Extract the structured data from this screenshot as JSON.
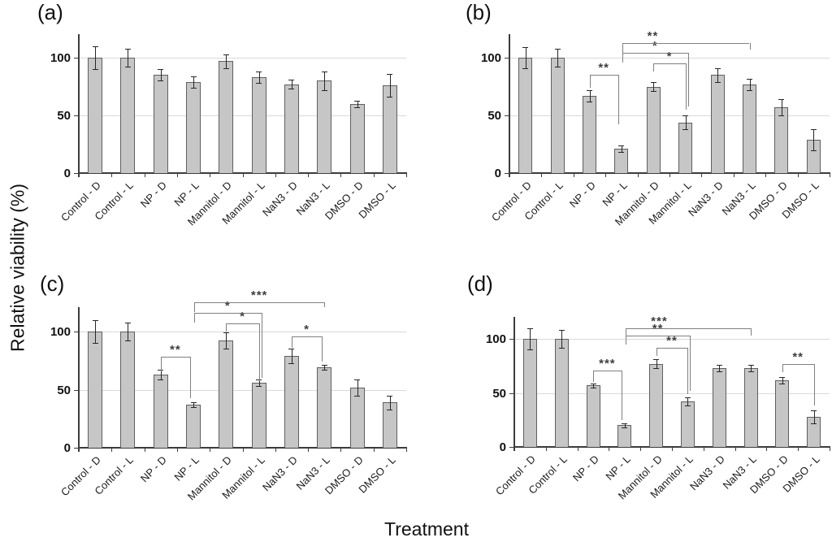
{
  "figure_title": "",
  "axes": {
    "ylabel": "Relative viability (%)",
    "xlabel": "Treatment"
  },
  "colors": {
    "bar_fill": "#c6c6c6",
    "bar_border": "#5f5f5f",
    "grid": "#d9d9d9",
    "axis": "#3c3c3c",
    "error_bar": "#262626",
    "bracket": "#808080",
    "sig_text": "#3f3f3f",
    "text": "#111111"
  },
  "chart_data": {
    "type": "bar",
    "title": "",
    "xlabel": "Treatment",
    "ylabel": "Relative viability (%)",
    "categories": [
      "Control - D",
      "Control - L",
      "NP - D",
      "NP - L",
      "Mannitol - D",
      "Mannitol - L",
      "NaN3 - D",
      "NaN3 - L",
      "DMSO - D",
      "DMSO - L"
    ],
    "yticks": [
      0,
      50,
      100
    ],
    "ylim": [
      0,
      120
    ],
    "grid": "horizontal",
    "legend": "none",
    "panels": [
      {
        "label": "(a)",
        "values": [
          100,
          100,
          85,
          79,
          97,
          83,
          77,
          80,
          60,
          76
        ],
        "errors": [
          10,
          8,
          5,
          5,
          6,
          5,
          4,
          8,
          3,
          10
        ],
        "brackets": []
      },
      {
        "label": "(b)",
        "values": [
          100,
          100,
          67,
          21,
          75,
          44,
          85,
          77,
          57,
          29
        ],
        "errors": [
          9,
          8,
          5,
          3,
          4,
          6,
          6,
          5,
          7,
          9
        ],
        "brackets": [
          {
            "a": 2,
            "b": 3,
            "sig": "**",
            "y": 85,
            "el": 74,
            "er": 42,
            "xb": -4
          },
          {
            "a": 4,
            "b": 5,
            "sig": "*",
            "y": 95,
            "el": 88,
            "er": 55
          },
          {
            "a": 3,
            "b": 5,
            "sig": "*",
            "y": 104,
            "el": 96,
            "er": 58,
            "xa": 1,
            "xb": 3
          },
          {
            "a": 3,
            "b": 7,
            "sig": "**",
            "y": 113,
            "el": 104,
            "er": 107,
            "xa": 1,
            "lx": 0.24
          }
        ]
      },
      {
        "label": "(c)",
        "values": [
          100,
          100,
          63,
          37,
          92,
          56,
          79,
          69,
          52,
          39
        ],
        "errors": [
          10,
          8,
          4,
          2,
          7,
          3,
          6,
          2,
          7,
          6
        ],
        "brackets": [
          {
            "a": 2,
            "b": 3,
            "sig": "**",
            "y": 78,
            "el": 66,
            "er": 43,
            "xb": -4
          },
          {
            "a": 4,
            "b": 5,
            "sig": "*",
            "y": 107,
            "el": 100,
            "er": 57
          },
          {
            "a": 3,
            "b": 5,
            "sig": "*",
            "y": 116,
            "el": 108,
            "er": 60,
            "xa": 1,
            "xb": 3
          },
          {
            "a": 3,
            "b": 7,
            "sig": "***",
            "y": 125,
            "el": 117,
            "er": 121,
            "xa": 1
          },
          {
            "a": 6,
            "b": 7,
            "sig": "*",
            "y": 96,
            "el": 86,
            "er": 74,
            "xb": -3
          }
        ]
      },
      {
        "label": "(d)",
        "values": [
          100,
          100,
          57,
          20,
          77,
          42,
          73,
          73,
          62,
          28
        ],
        "errors": [
          10,
          8,
          2,
          2,
          4,
          4,
          3,
          3,
          3,
          6
        ],
        "brackets": [
          {
            "a": 2,
            "b": 3,
            "sig": "***",
            "y": 71,
            "el": 60,
            "er": 25,
            "xb": -4
          },
          {
            "a": 4,
            "b": 5,
            "sig": "**",
            "y": 92,
            "el": 84,
            "er": 49
          },
          {
            "a": 3,
            "b": 5,
            "sig": "**",
            "y": 103,
            "el": 95,
            "er": 52,
            "xa": 1,
            "xb": 3
          },
          {
            "a": 3,
            "b": 7,
            "sig": "***",
            "y": 110,
            "el": 103,
            "er": 103,
            "xa": 1,
            "lx": 0.27
          },
          {
            "a": 8,
            "b": 9,
            "sig": "**",
            "y": 77,
            "el": 69,
            "er": 38
          }
        ]
      }
    ]
  }
}
